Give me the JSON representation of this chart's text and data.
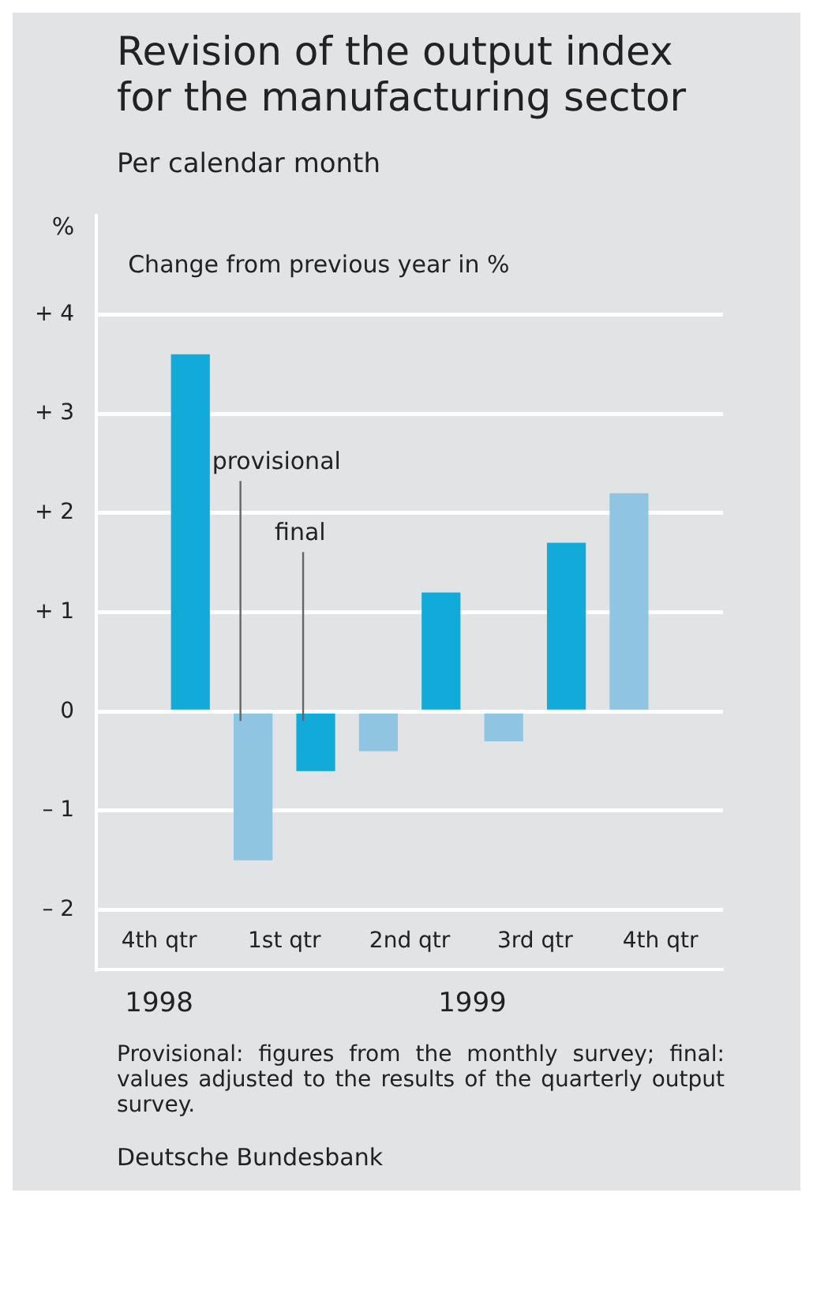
{
  "chart_data": {
    "type": "bar",
    "title": "Revision of the output index for the manufacturing sector",
    "subtitle": "Per calendar month",
    "ylabel": "%",
    "categories": [
      "4th qtr",
      "1st qtr",
      "2nd qtr",
      "3rd qtr",
      "4th qtr"
    ],
    "series": [
      {
        "name": "provisional",
        "color": "#8fc5e0",
        "values": [
          null,
          -1.5,
          -0.4,
          -0.3,
          2.2
        ]
      },
      {
        "name": "final",
        "color": "#12aad9",
        "values": [
          3.6,
          -0.6,
          1.2,
          1.7,
          null
        ]
      }
    ],
    "ylim": [
      -2.6,
      5
    ],
    "yticks": [
      {
        "value": -2,
        "label": "– 2"
      },
      {
        "value": -1,
        "label": "– 1"
      },
      0,
      {
        "value": 1,
        "label": "+ 1"
      },
      {
        "value": 2,
        "label": "+ 2"
      },
      {
        "value": 3,
        "label": "+ 3"
      },
      {
        "value": 4,
        "label": "+ 4"
      }
    ],
    "grid": "y",
    "legend": false,
    "annotations": [
      "Change from previous year in %",
      "1998",
      "1999",
      "Provisional: figures from the monthly survey; final: values adjusted to the results of the quarterly output survey.",
      "Deutsche Bundesbank"
    ]
  }
}
